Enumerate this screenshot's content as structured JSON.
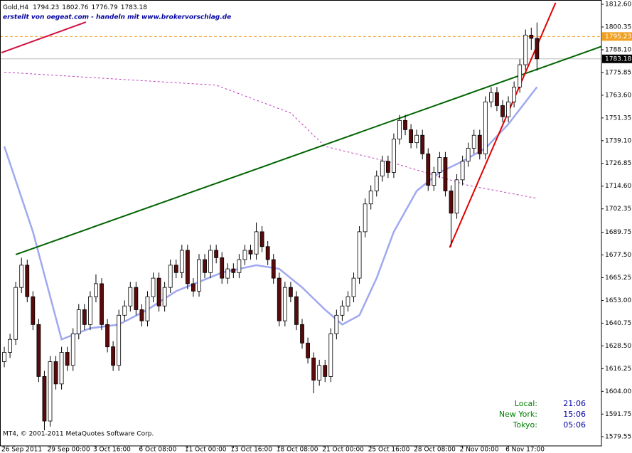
{
  "chart_data": {
    "type": "candlestick",
    "title": "Gold,H4",
    "subtitle": "erstellt von oegeat.com - handeln mit www.brokervorschlag.de",
    "copyright": "MT4, © 2001-2011 MetaQuotes Software Corp.",
    "categories": [
      "26 Sep 2011",
      null,
      null,
      null,
      null,
      null,
      null,
      null,
      "29 Sep 00:00",
      null,
      null,
      null,
      null,
      null,
      null,
      null,
      "3 Oct 16:00",
      null,
      null,
      null,
      null,
      null,
      null,
      null,
      "6 Oct 08:00",
      null,
      null,
      null,
      null,
      null,
      null,
      null,
      "11 Oct 00:00",
      null,
      null,
      null,
      null,
      null,
      null,
      null,
      "13 Oct 16:00",
      null,
      null,
      null,
      null,
      null,
      null,
      null,
      "18 Oct 08:00",
      null,
      null,
      null,
      null,
      null,
      null,
      null,
      "21 Oct 00:00",
      null,
      null,
      null,
      null,
      null,
      null,
      null,
      "25 Oct 16:00",
      null,
      null,
      null,
      null,
      null,
      null,
      null,
      "28 Oct 08:00",
      null,
      null,
      null,
      null,
      null,
      null,
      null,
      "2 Nov 00:00",
      null,
      null,
      null,
      null,
      null,
      null,
      null,
      "6 Nov 17:00",
      null,
      null,
      null,
      null,
      null
    ],
    "open": [
      1620,
      1625,
      1632,
      1660,
      1672,
      1655,
      1640,
      1612,
      1588,
      1620,
      1608,
      1625,
      1618,
      1635,
      1648,
      1640,
      1655,
      1662,
      1640,
      1628,
      1618,
      1645,
      1650,
      1660,
      1648,
      1642,
      1655,
      1665,
      1650,
      1660,
      1672,
      1668,
      1680,
      1662,
      1658,
      1675,
      1668,
      1680,
      1676,
      1665,
      1670,
      1668,
      1675,
      1680,
      1678,
      1690,
      1682,
      1675,
      1665,
      1642,
      1660,
      1655,
      1640,
      1630,
      1622,
      1610,
      1618,
      1612,
      1635,
      1645,
      1650,
      1655,
      1665,
      1690,
      1705,
      1712,
      1720,
      1728,
      1722,
      1740,
      1750,
      1745,
      1738,
      1742,
      1732,
      1715,
      1722,
      1730,
      1712,
      1700,
      1718,
      1728,
      1735,
      1742,
      1732,
      1760,
      1765,
      1758,
      1752,
      1760,
      1768,
      1780,
      1796,
      1794.23
    ],
    "high": [
      1628,
      1635,
      1663,
      1676,
      1675,
      1658,
      1643,
      1615,
      1623,
      1623,
      1628,
      1628,
      1638,
      1651,
      1651,
      1658,
      1667,
      1665,
      1643,
      1631,
      1648,
      1653,
      1663,
      1663,
      1651,
      1658,
      1668,
      1668,
      1663,
      1675,
      1675,
      1683,
      1683,
      1665,
      1678,
      1678,
      1683,
      1683,
      1679,
      1673,
      1673,
      1678,
      1683,
      1683,
      1695,
      1693,
      1685,
      1678,
      1668,
      1663,
      1663,
      1658,
      1643,
      1633,
      1625,
      1621,
      1621,
      1638,
      1648,
      1653,
      1658,
      1668,
      1693,
      1708,
      1715,
      1723,
      1731,
      1731,
      1743,
      1753,
      1753,
      1748,
      1745,
      1745,
      1735,
      1725,
      1733,
      1733,
      1715,
      1721,
      1731,
      1738,
      1745,
      1745,
      1763,
      1768,
      1768,
      1761,
      1763,
      1771,
      1783,
      1799,
      1800,
      1802.76
    ],
    "low": [
      1617,
      1622,
      1629,
      1657,
      1652,
      1637,
      1609,
      1583,
      1585,
      1605,
      1605,
      1615,
      1615,
      1632,
      1637,
      1637,
      1652,
      1637,
      1625,
      1615,
      1615,
      1642,
      1647,
      1645,
      1639,
      1639,
      1652,
      1647,
      1647,
      1657,
      1665,
      1665,
      1659,
      1655,
      1655,
      1665,
      1665,
      1673,
      1662,
      1662,
      1665,
      1665,
      1672,
      1675,
      1675,
      1679,
      1672,
      1662,
      1639,
      1639,
      1652,
      1637,
      1627,
      1619,
      1603,
      1607,
      1609,
      1609,
      1632,
      1642,
      1647,
      1652,
      1662,
      1687,
      1702,
      1709,
      1717,
      1719,
      1719,
      1737,
      1742,
      1735,
      1735,
      1729,
      1712,
      1712,
      1719,
      1709,
      1682,
      1697,
      1715,
      1725,
      1732,
      1729,
      1729,
      1757,
      1755,
      1749,
      1749,
      1757,
      1765,
      1777,
      1788,
      1776.79
    ],
    "close": [
      1625,
      1632,
      1660,
      1672,
      1655,
      1640,
      1612,
      1588,
      1620,
      1608,
      1625,
      1618,
      1635,
      1648,
      1640,
      1655,
      1662,
      1640,
      1628,
      1618,
      1645,
      1650,
      1660,
      1648,
      1642,
      1655,
      1665,
      1650,
      1660,
      1672,
      1668,
      1680,
      1662,
      1658,
      1675,
      1668,
      1680,
      1676,
      1665,
      1670,
      1668,
      1675,
      1680,
      1678,
      1690,
      1682,
      1675,
      1665,
      1642,
      1660,
      1655,
      1640,
      1630,
      1622,
      1610,
      1618,
      1612,
      1635,
      1645,
      1650,
      1655,
      1665,
      1690,
      1705,
      1712,
      1720,
      1728,
      1722,
      1740,
      1750,
      1745,
      1738,
      1742,
      1732,
      1715,
      1722,
      1730,
      1712,
      1700,
      1718,
      1728,
      1735,
      1742,
      1732,
      1760,
      1765,
      1758,
      1752,
      1760,
      1768,
      1780,
      1796,
      1794.23,
      1783.18
    ],
    "bull_color": "#ffffff",
    "bear_color": "#5a0a0a",
    "lines": [
      {
        "color": "#a0a8f0",
        "width": 2.5,
        "dashed": false,
        "x": [
          0,
          5,
          10,
          15,
          20,
          25,
          30,
          38,
          44,
          48,
          52,
          56,
          59,
          62,
          65,
          68,
          72,
          76,
          80,
          84,
          88,
          93
        ],
        "values": [
          1736,
          1690,
          1632,
          1638,
          1640,
          1648,
          1658,
          1668,
          1672,
          1670,
          1660,
          1648,
          1640,
          1645,
          1665,
          1690,
          1712,
          1722,
          1728,
          1735,
          1748,
          1768
        ]
      },
      {
        "color": "#c040c0",
        "width": 1,
        "dashed": true,
        "x": [
          0,
          37,
          50,
          56,
          68,
          81,
          93
        ],
        "values": [
          1776,
          1769,
          1754,
          1736,
          1727,
          1715,
          1708
        ]
      },
      {
        "color": "#006400",
        "width": 2,
        "dashed": false,
        "x": [
          2,
          105
        ],
        "values": [
          1677.7,
          1790.7
        ]
      },
      {
        "color": "#e00000",
        "width": 2,
        "dashed": false,
        "x": [
          77.75,
          96.25
        ],
        "values": [
          1681.5,
          1813.4
        ]
      },
      {
        "color": "#d01040",
        "width": 2,
        "dashed": false,
        "x": [
          -0.5,
          14.25
        ],
        "values": [
          1786.5,
          1803
        ]
      }
    ],
    "price_lines": [
      {
        "value": 1795.23,
        "color": "#f0a020",
        "dashed": true
      },
      {
        "value": 1783.18,
        "color": "#b8b8b8",
        "dashed": false
      }
    ],
    "xlim": [
      -0.75,
      104.25
    ],
    "ylim": [
      1574.6,
      1814.9
    ],
    "yticks": [
      {
        "value": 1812.6,
        "label": "1812.60"
      },
      1800.35,
      {
        "value": 1788.1,
        "label": "1788.10"
      },
      1775.85,
      {
        "value": 1763.6,
        "label": "1763.60"
      },
      1751.35,
      {
        "value": 1739.1,
        "label": "1739.10"
      },
      1726.85,
      {
        "value": 1714.6,
        "label": "1714.60"
      },
      1702.35,
      1689.75,
      {
        "value": 1677.5,
        "label": "1677.50"
      },
      1665.25,
      {
        "value": 1653,
        "label": "1653.00"
      },
      1640.75,
      {
        "value": 1628.5,
        "label": "1628.50"
      },
      1616.25,
      {
        "value": 1604,
        "label": "1604.00"
      },
      1591.75,
      1579.55
    ],
    "clock": [
      {
        "label": "Local:",
        "time": "21:06"
      },
      {
        "label": "New York:",
        "time": "15:06"
      },
      {
        "label": "Tokyo:",
        "time": "05:06"
      }
    ]
  }
}
